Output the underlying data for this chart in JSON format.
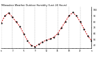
{
  "title": "Milwaukee Weather Outdoor Humidity (Last 24 Hours)",
  "background_color": "#ffffff",
  "line_color": "#cc0000",
  "marker_color": "#000000",
  "grid_color": "#888888",
  "hours": [
    0,
    1,
    2,
    3,
    4,
    5,
    6,
    7,
    8,
    9,
    10,
    11,
    12,
    13,
    14,
    15,
    16,
    17,
    18,
    19,
    20,
    21,
    22,
    23,
    24
  ],
  "humidity": [
    78,
    90,
    95,
    88,
    80,
    72,
    60,
    48,
    40,
    38,
    42,
    46,
    49,
    51,
    54,
    60,
    70,
    80,
    90,
    96,
    90,
    80,
    68,
    56,
    48
  ],
  "ylim": [
    35,
    105
  ],
  "yticks": [
    40,
    50,
    60,
    70,
    80,
    90,
    100
  ],
  "vgrid_positions": [
    0,
    3,
    6,
    9,
    12,
    15,
    18,
    21,
    24
  ],
  "xlim": [
    0,
    24
  ]
}
